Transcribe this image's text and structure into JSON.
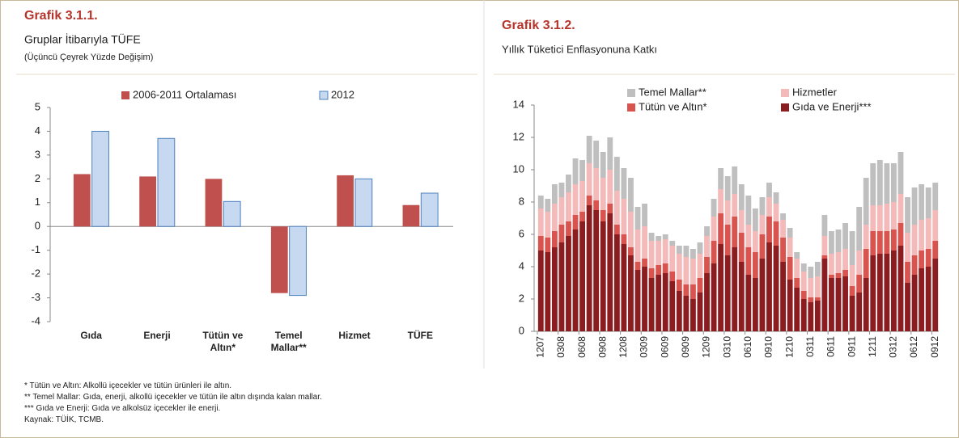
{
  "chart_data": [
    {
      "type": "bar",
      "title": "Grafik 3.1.1.",
      "subtitle": "Gruplar İtibarıyla TÜFE",
      "subtitle2": "(Üçüncü Çeyrek Yüzde Değişim)",
      "categories": [
        "Gıda",
        "Enerji",
        "Tütün ve Altın*",
        "Temel Mallar**",
        "Hizmet",
        "TÜFE"
      ],
      "series": [
        {
          "name": "2006-2011 Ortalaması",
          "color": "#c0504d",
          "values": [
            2.2,
            2.1,
            2.0,
            -2.8,
            2.15,
            0.9
          ]
        },
        {
          "name": "2012",
          "color": "#c6d9f1",
          "values": [
            4.0,
            3.7,
            1.05,
            -2.9,
            2.0,
            1.4
          ]
        }
      ],
      "ylim": [
        -4,
        5
      ],
      "yticks": [
        -4,
        -3,
        -2,
        -1,
        0,
        1,
        2,
        3,
        4,
        5
      ],
      "grid": false
    },
    {
      "type": "bar",
      "stacked": true,
      "title": "Grafik 3.1.2.",
      "subtitle": "Yıllık Tüketici Enflasyonuna Katkı",
      "categories": [
        "1207",
        null,
        null,
        "0308",
        null,
        null,
        "0608",
        null,
        null,
        "0908",
        null,
        null,
        "1208",
        null,
        null,
        "0309",
        null,
        null,
        "0609",
        null,
        null,
        "0909",
        null,
        null,
        "1209",
        null,
        null,
        "0310",
        null,
        null,
        "0610",
        null,
        null,
        "0910",
        null,
        null,
        "1210",
        null,
        null,
        "0311",
        null,
        null,
        "0611",
        null,
        null,
        "0911",
        null,
        null,
        "1211",
        null,
        null,
        "0312",
        null,
        null,
        "0612",
        null,
        null,
        "0912"
      ],
      "series": [
        {
          "name": "Gıda ve Enerji***",
          "color": "#8b1c1f",
          "values": [
            5.0,
            4.9,
            5.2,
            5.5,
            5.9,
            6.3,
            6.8,
            7.8,
            7.5,
            6.8,
            7.3,
            6.0,
            5.4,
            4.7,
            3.8,
            4.0,
            3.3,
            3.5,
            3.6,
            3.1,
            2.5,
            2.2,
            2.0,
            2.4,
            3.6,
            4.2,
            5.4,
            4.7,
            5.2,
            4.3,
            3.5,
            3.3,
            4.5,
            5.5,
            5.3,
            4.3,
            3.2,
            2.7,
            2.0,
            1.8,
            1.9,
            4.5,
            3.3,
            3.3,
            3.4,
            2.2,
            2.4,
            3.3,
            4.7,
            4.8,
            4.8,
            5.0,
            5.3,
            3.0,
            3.5,
            3.9,
            4.0,
            4.5
          ]
        },
        {
          "name": "Tütün ve Altın*",
          "color": "#d9534f",
          "values": [
            0.9,
            0.9,
            1.0,
            1.1,
            0.9,
            0.9,
            0.6,
            0.6,
            0.6,
            0.7,
            0.6,
            0.6,
            0.6,
            0.5,
            0.5,
            0.5,
            0.6,
            0.6,
            0.6,
            0.6,
            0.7,
            0.7,
            0.9,
            0.9,
            1.0,
            1.4,
            1.9,
            1.9,
            1.9,
            1.8,
            1.7,
            1.6,
            1.5,
            1.6,
            1.5,
            1.5,
            1.4,
            0.6,
            0.5,
            0.3,
            0.2,
            0.2,
            0.2,
            0.3,
            0.4,
            0.6,
            1.1,
            1.8,
            1.5,
            1.4,
            1.4,
            1.3,
            1.4,
            1.3,
            1.2,
            1.1,
            1.1,
            1.1
          ]
        },
        {
          "name": "Hizmetler",
          "color": "#f4b9b9",
          "values": [
            1.7,
            1.6,
            1.7,
            1.7,
            1.8,
            1.9,
            1.9,
            2.0,
            2.0,
            2.0,
            2.1,
            2.1,
            2.2,
            2.2,
            2.0,
            2.0,
            1.7,
            1.5,
            1.5,
            1.6,
            1.6,
            1.7,
            1.6,
            1.5,
            1.3,
            1.5,
            1.5,
            1.5,
            1.4,
            1.4,
            1.4,
            1.3,
            1.2,
            1.2,
            1.1,
            1.1,
            1.2,
            1.2,
            1.2,
            1.2,
            1.3,
            1.2,
            1.3,
            1.3,
            1.3,
            1.3,
            1.5,
            1.5,
            1.6,
            1.6,
            1.7,
            1.7,
            1.8,
            1.8,
            1.9,
            1.9,
            1.9,
            1.9
          ]
        },
        {
          "name": "Temel Mallar**",
          "color": "#bfbfbf",
          "values": [
            0.8,
            0.8,
            1.2,
            0.9,
            1.1,
            1.6,
            1.3,
            1.7,
            1.7,
            1.6,
            2.0,
            2.1,
            1.9,
            2.1,
            1.4,
            1.4,
            0.5,
            0.3,
            0.3,
            0.3,
            0.5,
            0.7,
            0.6,
            0.7,
            0.6,
            1.1,
            1.3,
            1.5,
            1.7,
            1.6,
            1.8,
            1.4,
            1.1,
            0.9,
            0.7,
            0.4,
            0.6,
            0.4,
            0.5,
            0.7,
            0.9,
            1.3,
            1.4,
            1.4,
            1.6,
            2.1,
            2.7,
            2.9,
            2.6,
            2.8,
            2.5,
            2.4,
            2.6,
            2.2,
            2.3,
            2.2,
            1.9,
            1.7
          ]
        }
      ],
      "ylim": [
        0,
        14
      ],
      "yticks": [
        0,
        2,
        4,
        6,
        8,
        10,
        12,
        14
      ],
      "grid": false
    }
  ],
  "footnotes": [
    "* Tütün ve Altın: Alkollü içecekler ve tütün ürünleri ile altın.",
    "** Temel Mallar: Gıda, enerji, alkollü içecekler ve tütün ile altın dışında kalan mallar.",
    "*** Gıda ve Enerji: Gıda ve alkolsüz içecekler ile enerji.",
    "Kaynak: TÜİK, TCMB."
  ]
}
